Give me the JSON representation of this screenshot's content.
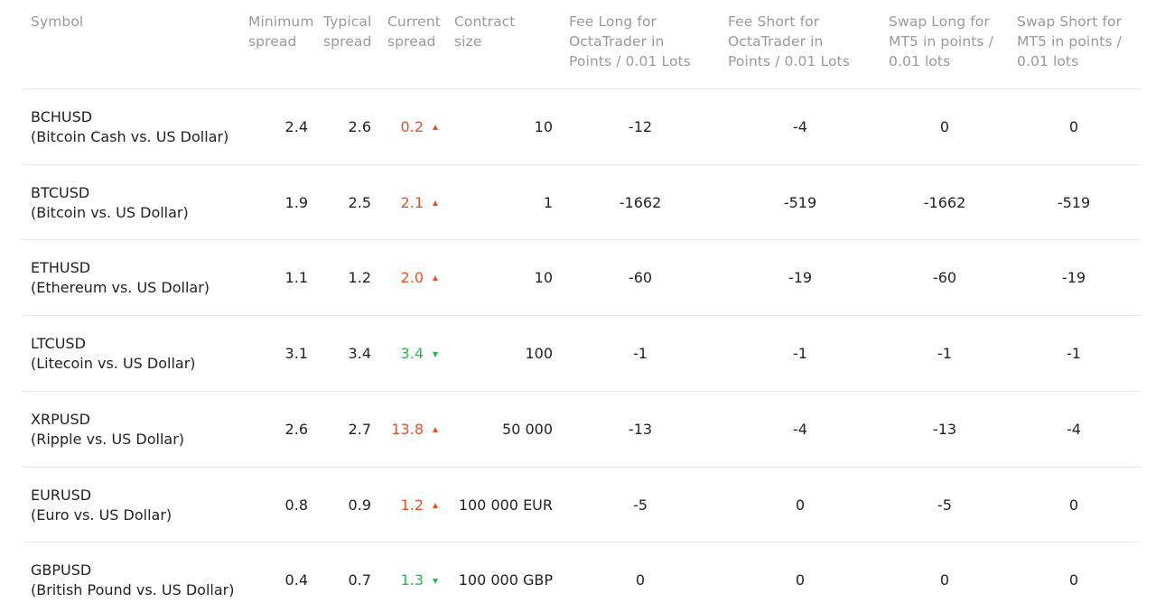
{
  "table": {
    "headers": [
      "Symbol",
      "Minimum spread",
      "Typical spread",
      "Current spread",
      "Contract size",
      "Fee Long for OctaTrader in Points / 0.01 Lots",
      "Fee Short for OctaTrader in Points / 0.01 Lots",
      "Swap Long for MT5 in points / 0.01 lots",
      "Swap Short for MT5 in points / 0.01 lots"
    ],
    "rows": [
      {
        "symbol": "BCHUSD",
        "description": "(Bitcoin Cash vs. US Dollar)",
        "min_spread": "2.4",
        "typical_spread": "2.6",
        "current_spread": "0.2",
        "trend": "up",
        "contract_size": "10",
        "fee_long": "-12",
        "fee_short": "-4",
        "swap_long": "0",
        "swap_short": "0"
      },
      {
        "symbol": "BTCUSD",
        "description": "(Bitcoin vs. US Dollar)",
        "min_spread": "1.9",
        "typical_spread": "2.5",
        "current_spread": "2.1",
        "trend": "up",
        "contract_size": "1",
        "fee_long": "-1662",
        "fee_short": "-519",
        "swap_long": "-1662",
        "swap_short": "-519"
      },
      {
        "symbol": "ETHUSD",
        "description": "(Ethereum vs. US Dollar)",
        "min_spread": "1.1",
        "typical_spread": "1.2",
        "current_spread": "2.0",
        "trend": "up",
        "contract_size": "10",
        "fee_long": "-60",
        "fee_short": "-19",
        "swap_long": "-60",
        "swap_short": "-19"
      },
      {
        "symbol": "LTCUSD",
        "description": "(Litecoin vs. US Dollar)",
        "min_spread": "3.1",
        "typical_spread": "3.4",
        "current_spread": "3.4",
        "trend": "down",
        "contract_size": "100",
        "fee_long": "-1",
        "fee_short": "-1",
        "swap_long": "-1",
        "swap_short": "-1"
      },
      {
        "symbol": "XRPUSD",
        "description": "(Ripple vs. US Dollar)",
        "min_spread": "2.6",
        "typical_spread": "2.7",
        "current_spread": "13.8",
        "trend": "up",
        "contract_size": "50 000",
        "fee_long": "-13",
        "fee_short": "-4",
        "swap_long": "-13",
        "swap_short": "-4"
      },
      {
        "symbol": "EURUSD",
        "description": "(Euro vs. US Dollar)",
        "min_spread": "0.8",
        "typical_spread": "0.9",
        "current_spread": "1.2",
        "trend": "up",
        "contract_size": "100 000 EUR",
        "fee_long": "-5",
        "fee_short": "0",
        "swap_long": "-5",
        "swap_short": "0"
      },
      {
        "symbol": "GBPUSD",
        "description": "(British Pound vs. US Dollar)",
        "min_spread": "0.4",
        "typical_spread": "0.7",
        "current_spread": "1.3",
        "trend": "down",
        "contract_size": "100 000 GBP",
        "fee_long": "0",
        "fee_short": "0",
        "swap_long": "0",
        "swap_short": "0"
      }
    ]
  }
}
